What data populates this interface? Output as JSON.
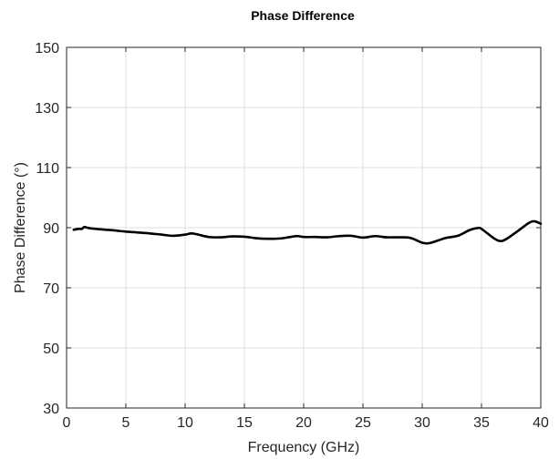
{
  "chart_data": {
    "type": "line",
    "title": "Phase Difference",
    "xlabel": "Frequency (GHz)",
    "ylabel": "Phase Difference (°)",
    "xlim": [
      0,
      40
    ],
    "ylim": [
      30,
      150
    ],
    "xticks": [
      0,
      5,
      10,
      15,
      20,
      25,
      30,
      35,
      40
    ],
    "yticks": [
      30,
      50,
      70,
      90,
      110,
      130,
      150
    ],
    "grid": true,
    "line_color": "#000000",
    "x": [
      0.6,
      1.0,
      1.3,
      1.5,
      2,
      3,
      4,
      5,
      6,
      7,
      8,
      9,
      10,
      10.5,
      11,
      12,
      13,
      14,
      15,
      16,
      17,
      18,
      19,
      19.5,
      20,
      21,
      22,
      23,
      24,
      25,
      26,
      27,
      28,
      29,
      30,
      30.5,
      31,
      32,
      33,
      34,
      34.7,
      35,
      36,
      36.5,
      37,
      38,
      39,
      39.5,
      40
    ],
    "y": [
      89.3,
      89.6,
      89.6,
      90.2,
      89.8,
      89.4,
      89.1,
      88.7,
      88.4,
      88.1,
      87.7,
      87.3,
      87.7,
      88.1,
      87.8,
      86.9,
      86.8,
      87.1,
      87.0,
      86.5,
      86.3,
      86.4,
      87.0,
      87.2,
      86.9,
      86.9,
      86.8,
      87.2,
      87.3,
      86.7,
      87.2,
      86.8,
      86.8,
      86.6,
      85.0,
      84.8,
      85.3,
      86.6,
      87.3,
      89.2,
      89.9,
      89.6,
      86.6,
      85.6,
      86.0,
      88.7,
      91.6,
      92.1,
      91.3
    ]
  }
}
